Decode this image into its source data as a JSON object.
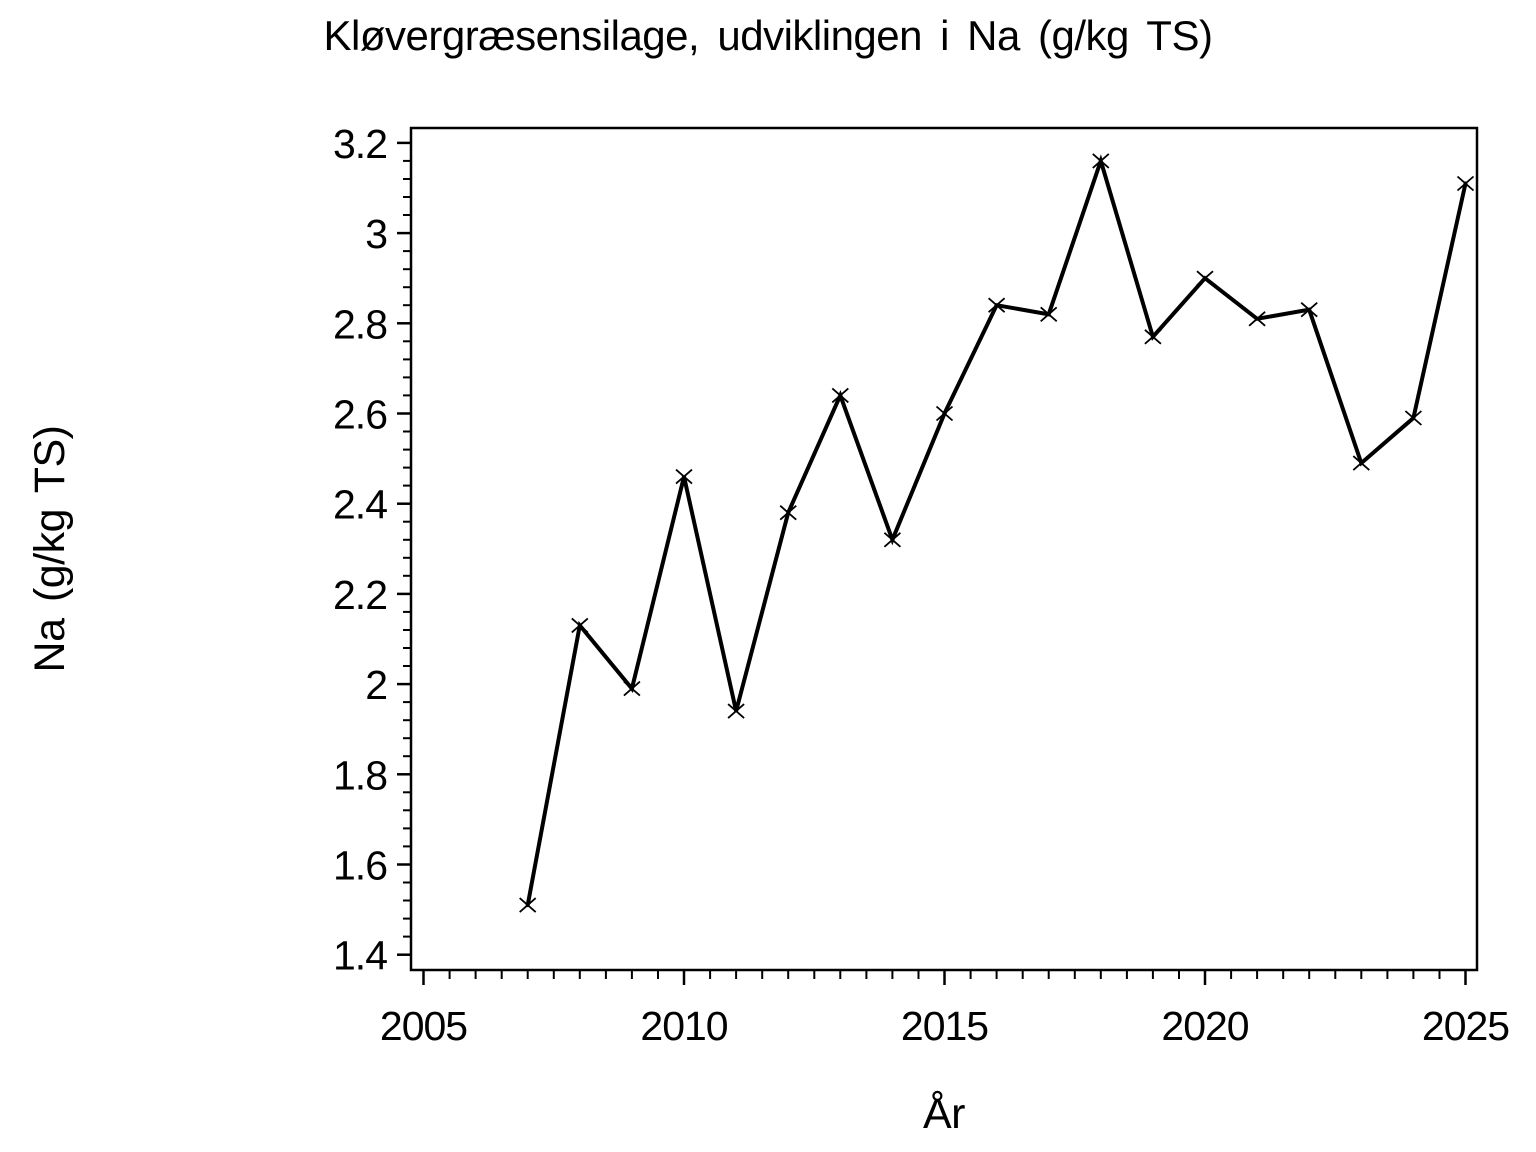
{
  "page": {
    "background_color": "#ffffff"
  },
  "chart_data": {
    "type": "line",
    "title": "Kløvergræsensilage, udviklingen i Na (g/kg TS)",
    "xlabel": "År",
    "ylabel": "Na (g/kg TS)",
    "x": [
      2007,
      2008,
      2009,
      2010,
      2011,
      2012,
      2013,
      2014,
      2015,
      2016,
      2017,
      2018,
      2019,
      2020,
      2021,
      2022,
      2023,
      2024,
      2025
    ],
    "series": [
      {
        "name": "Na (g/kg TS)",
        "values": [
          1.51,
          2.13,
          1.99,
          2.46,
          1.94,
          2.38,
          2.64,
          2.32,
          2.6,
          2.84,
          2.82,
          3.16,
          2.77,
          2.9,
          2.81,
          2.83,
          2.49,
          2.59,
          3.11
        ]
      }
    ],
    "marker": "x",
    "line_color": "#000000",
    "marker_color": "#000000",
    "text_color": "#000000",
    "background_color": "#ffffff",
    "xlim": [
      2004.76,
      2025.22
    ],
    "ylim": [
      1.366,
      3.233
    ],
    "x_major_ticks": [
      2005,
      2010,
      2015,
      2020,
      2025
    ],
    "x_tick_labels": [
      "2005",
      "2010",
      "2015",
      "2020",
      "2025"
    ],
    "x_minor_tick_step": 0.5,
    "y_major_ticks": [
      1.4,
      1.6,
      1.8,
      2.0,
      2.2,
      2.4,
      2.6,
      2.8,
      3.0,
      3.2
    ],
    "y_tick_labels": [
      "1.4",
      "1.6",
      "1.8",
      "2",
      "2.2",
      "2.4",
      "2.6",
      "2.8",
      "3",
      "3.2"
    ],
    "y_minor_tick_step": 0.04,
    "grid": false,
    "legend_position": "none",
    "frame": "box"
  }
}
